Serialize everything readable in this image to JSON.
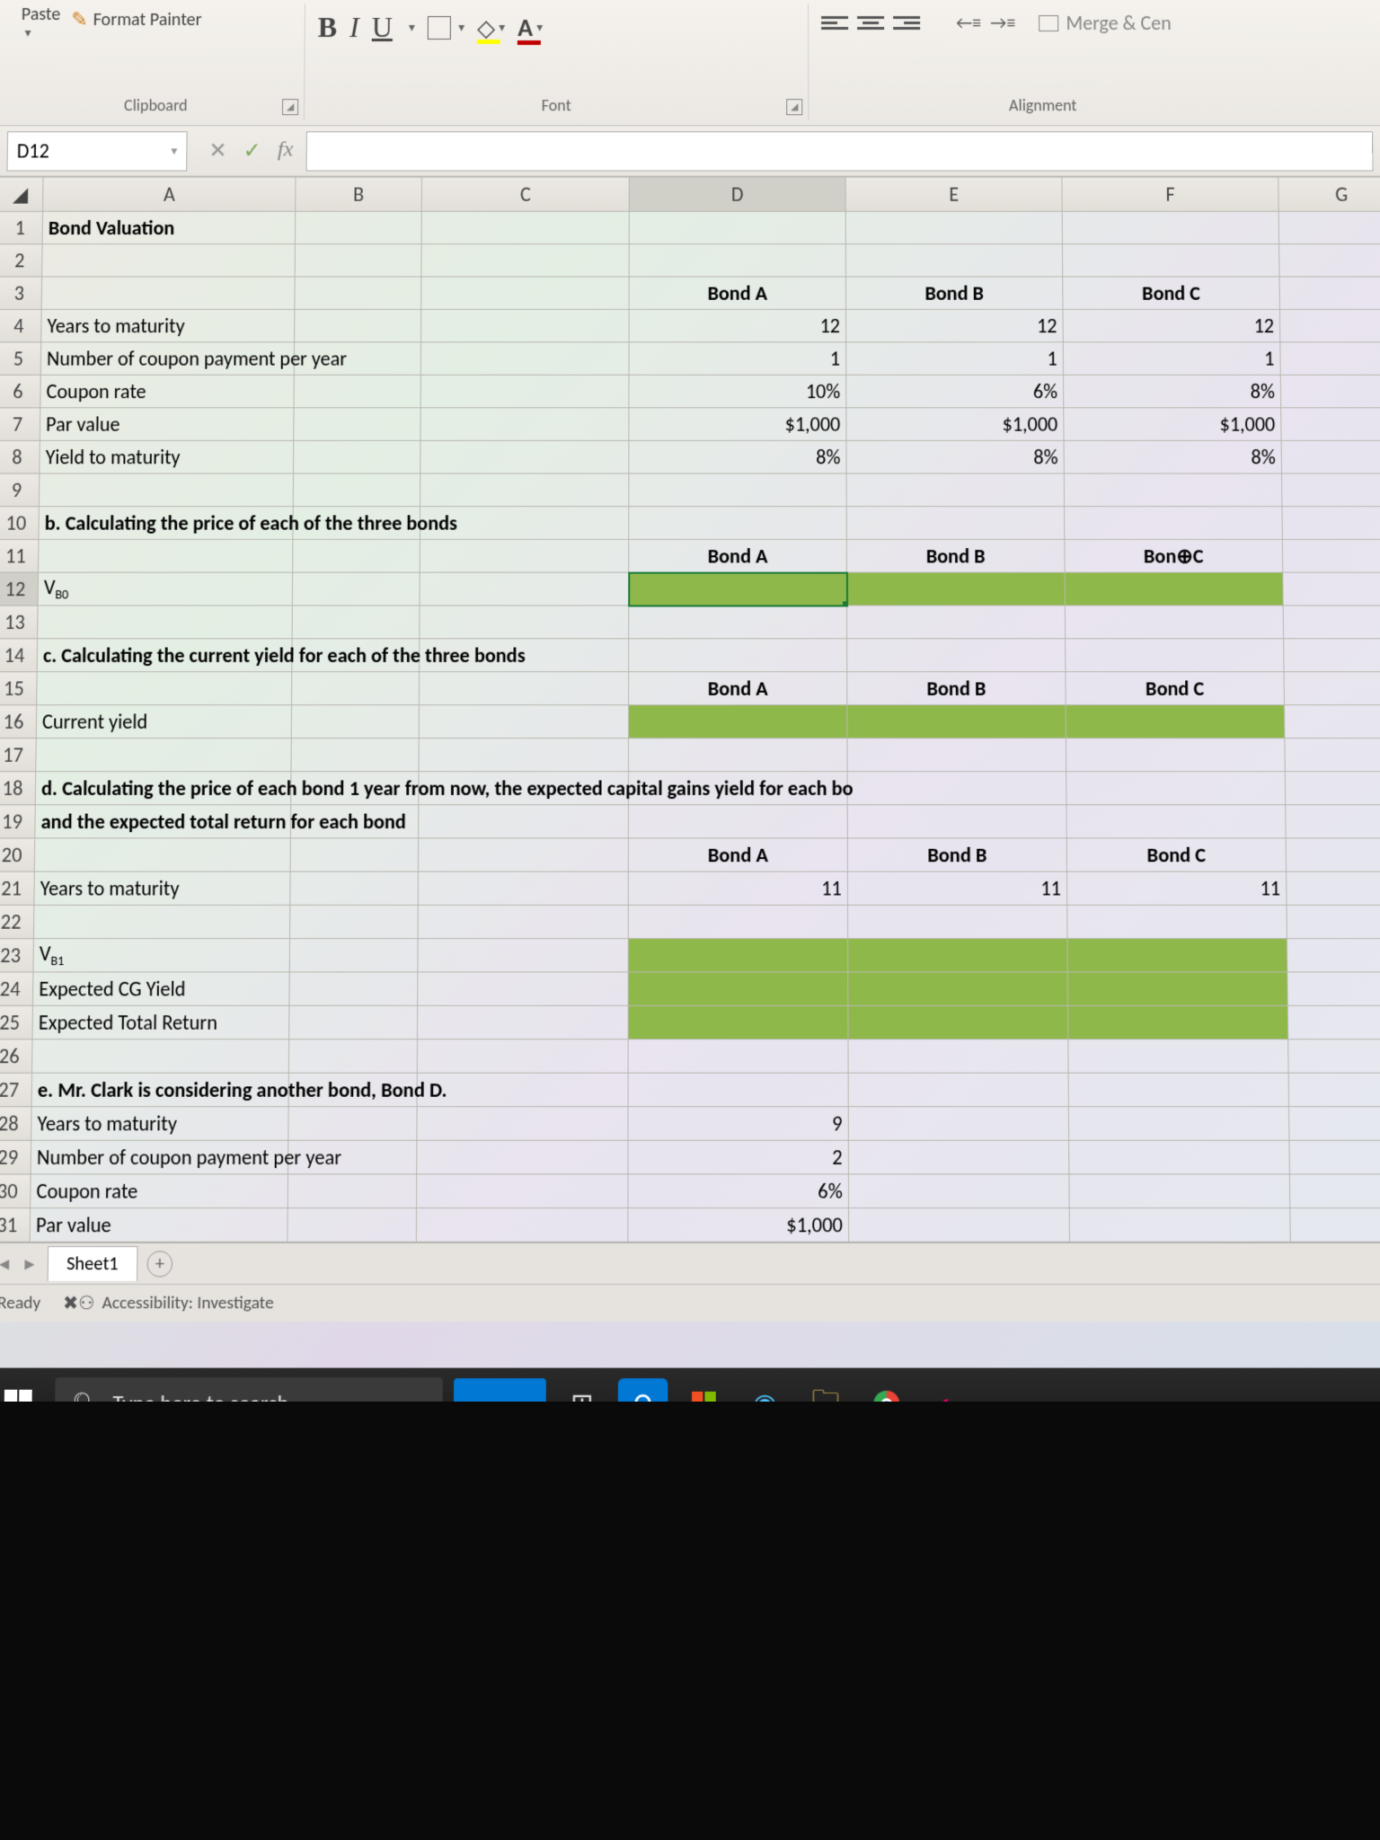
{
  "ribbon": {
    "paste_label": "Paste",
    "format_painter": "Format Painter",
    "clipboard_label": "Clipboard",
    "font_label": "Font",
    "alignment_label": "Alignment",
    "merge_label": "Merge & Cen",
    "bold": "B",
    "italic": "I",
    "underline": "U",
    "font_color_bar": "#c00000",
    "fill_color_bar": "#ffff00",
    "A_letter": "A"
  },
  "namebox": "D12",
  "fb": {
    "x": "✕",
    "check": "✓",
    "fx": "fx"
  },
  "columns": [
    "A",
    "B",
    "C",
    "D",
    "E",
    "F",
    "G"
  ],
  "selected_cell": {
    "row": 12,
    "col": "D"
  },
  "rows": [
    {
      "n": 1,
      "A": "Bond Valuation",
      "bold": true
    },
    {
      "n": 2
    },
    {
      "n": 3,
      "D": "Bond A",
      "E": "Bond B",
      "F": "Bond C",
      "hdrBold": true,
      "center": true
    },
    {
      "n": 4,
      "A": "Years to maturity",
      "D": "12",
      "E": "12",
      "F": "12",
      "right": true
    },
    {
      "n": 5,
      "A": "Number of coupon payment per year",
      "D": "1",
      "E": "1",
      "F": "1",
      "right": true,
      "spanA": true
    },
    {
      "n": 6,
      "A": "Coupon rate",
      "D": "10%",
      "E": "6%",
      "F": "8%",
      "right": true
    },
    {
      "n": 7,
      "A": "Par value",
      "D": "$1,000",
      "E": "$1,000",
      "F": "$1,000",
      "right": true
    },
    {
      "n": 8,
      "A": "Yield to maturity",
      "D": "8%",
      "E": "8%",
      "F": "8%",
      "right": true
    },
    {
      "n": 9
    },
    {
      "n": 10,
      "A": "b.  Calculating the price of each of the three bonds",
      "bold": true,
      "spanA": true
    },
    {
      "n": 11,
      "D": "Bond A",
      "E": "Bond B",
      "F": "Bon⊕C",
      "hdrBold": true,
      "center": true
    },
    {
      "n": 12,
      "A": "V",
      "sub": "B0",
      "greenDEF": true,
      "selD": true
    },
    {
      "n": 13
    },
    {
      "n": 14,
      "A": "c.  Calculating the current yield for each of the three bonds",
      "bold": true,
      "spanA": true
    },
    {
      "n": 15,
      "D": "Bond A",
      "E": "Bond B",
      "F": "Bond C",
      "hdrBold": true,
      "center": true
    },
    {
      "n": 16,
      "A": "Current yield",
      "greenDEF": true
    },
    {
      "n": 17
    },
    {
      "n": 18,
      "A": "d.  Calculating the price of each bond 1 year from now, the expected capital gains yield for each bo",
      "bold": true,
      "spanA": true
    },
    {
      "n": 19,
      "A": "     and the expected total return for each bond",
      "bold": true,
      "spanA": true
    },
    {
      "n": 20,
      "D": "Bond A",
      "E": "Bond B",
      "F": "Bond C",
      "hdrBold": true,
      "center": true
    },
    {
      "n": 21,
      "A": "Years to maturity",
      "D": "11",
      "E": "11",
      "F": "11",
      "right": true
    },
    {
      "n": 22
    },
    {
      "n": 23,
      "A": "V",
      "sub": "B1",
      "greenDEF": true
    },
    {
      "n": 24,
      "A": "Expected CG Yield",
      "greenDEF": true
    },
    {
      "n": 25,
      "A": "Expected Total Return",
      "greenDEF": true
    },
    {
      "n": 26
    },
    {
      "n": 27,
      "A": "e.  Mr. Clark is considering another bond, Bond D.",
      "bold": true,
      "spanA": true
    },
    {
      "n": 28,
      "A": "Years to maturity",
      "D": "9",
      "right": true
    },
    {
      "n": 29,
      "A": "Number of coupon payment per year",
      "D": "2",
      "right": true,
      "spanA": true
    },
    {
      "n": 30,
      "A": "Coupon rate",
      "D": "6%",
      "right": true
    },
    {
      "n": 31,
      "A": "Par value",
      "D": "$1,000",
      "right": true
    }
  ],
  "sheet_tab": "Sheet1",
  "status": {
    "ready": "Ready",
    "acc": "Accessibility: Investigate"
  },
  "taskbar": {
    "search": "Type here to search"
  },
  "colors": {
    "green_fill": "#8fb84a",
    "sel_border": "#1a7a3a"
  }
}
